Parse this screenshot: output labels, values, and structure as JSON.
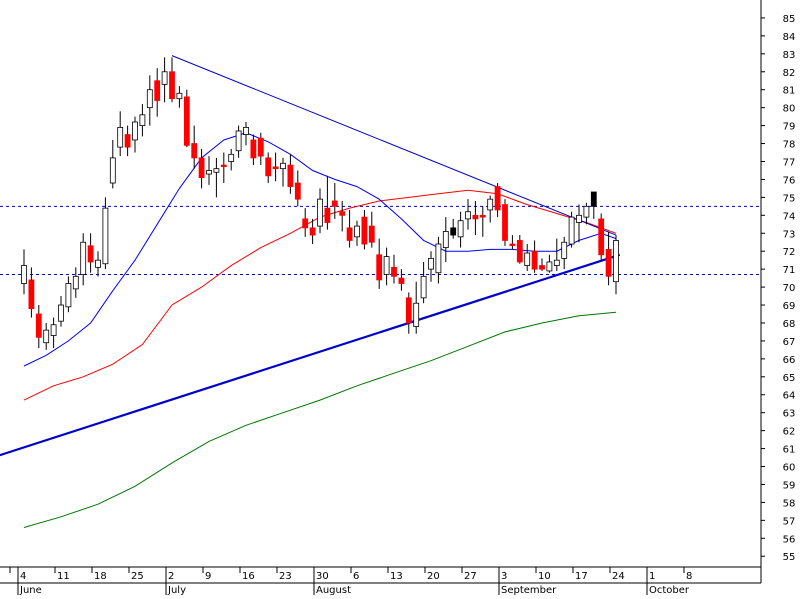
{
  "chart_data": {
    "type": "candlestick",
    "title": "",
    "xlabel": "",
    "ylabel": "",
    "ylim": [
      54.4,
      86.0
    ],
    "y_ticks": [
      55,
      56,
      57,
      58,
      59,
      60,
      61,
      62,
      63,
      64,
      65,
      66,
      67,
      68,
      69,
      70,
      71,
      72,
      73,
      74,
      75,
      76,
      77,
      78,
      79,
      80,
      81,
      82,
      83,
      84,
      85
    ],
    "x_day_ticks": [
      {
        "label": "4",
        "i": 0
      },
      {
        "label": "11",
        "i": 5
      },
      {
        "label": "18",
        "i": 10
      },
      {
        "label": "25",
        "i": 15
      },
      {
        "label": "2",
        "i": 20
      },
      {
        "label": "9",
        "i": 25
      },
      {
        "label": "16",
        "i": 30
      },
      {
        "label": "23",
        "i": 35
      },
      {
        "label": "30",
        "i": 40
      },
      {
        "label": "6",
        "i": 45
      },
      {
        "label": "13",
        "i": 50
      },
      {
        "label": "20",
        "i": 55
      },
      {
        "label": "27",
        "i": 60
      },
      {
        "label": "3",
        "i": 65
      },
      {
        "label": "10",
        "i": 70
      },
      {
        "label": "17",
        "i": 75
      },
      {
        "label": "24",
        "i": 80
      },
      {
        "label": "1",
        "i": 85
      },
      {
        "label": "8",
        "i": 90
      }
    ],
    "x_month_ticks": [
      {
        "label": "June",
        "i": 0
      },
      {
        "label": "July",
        "i": 20
      },
      {
        "label": "August",
        "i": 40
      },
      {
        "label": "September",
        "i": 65
      },
      {
        "label": "October",
        "i": 85
      }
    ],
    "candles": [
      {
        "o": 70.2,
        "h": 72.1,
        "l": 69.6,
        "c": 71.2,
        "dir": "up"
      },
      {
        "o": 70.4,
        "h": 71.1,
        "l": 68.3,
        "c": 68.8,
        "dir": "down"
      },
      {
        "o": 68.5,
        "h": 69.0,
        "l": 66.6,
        "c": 67.2,
        "dir": "down"
      },
      {
        "o": 66.9,
        "h": 68.0,
        "l": 66.5,
        "c": 67.6,
        "dir": "up"
      },
      {
        "o": 67.3,
        "h": 68.3,
        "l": 66.6,
        "c": 67.9,
        "dir": "up"
      },
      {
        "o": 68.1,
        "h": 69.5,
        "l": 67.8,
        "c": 69.0,
        "dir": "up"
      },
      {
        "o": 68.9,
        "h": 70.6,
        "l": 68.6,
        "c": 70.2,
        "dir": "up"
      },
      {
        "o": 69.9,
        "h": 71.1,
        "l": 69.4,
        "c": 70.6,
        "dir": "up"
      },
      {
        "o": 70.7,
        "h": 73.0,
        "l": 70.1,
        "c": 72.5,
        "dir": "up"
      },
      {
        "o": 72.3,
        "h": 73.0,
        "l": 70.8,
        "c": 71.4,
        "dir": "down"
      },
      {
        "o": 71.1,
        "h": 72.0,
        "l": 70.6,
        "c": 71.5,
        "dir": "up"
      },
      {
        "o": 71.3,
        "h": 75.0,
        "l": 71.0,
        "c": 74.4,
        "dir": "up"
      },
      {
        "o": 75.8,
        "h": 78.2,
        "l": 75.5,
        "c": 77.2,
        "dir": "up"
      },
      {
        "o": 77.8,
        "h": 79.8,
        "l": 77.3,
        "c": 78.9,
        "dir": "up"
      },
      {
        "o": 78.5,
        "h": 79.0,
        "l": 77.3,
        "c": 77.8,
        "dir": "down"
      },
      {
        "o": 78.2,
        "h": 79.5,
        "l": 77.5,
        "c": 79.2,
        "dir": "up"
      },
      {
        "o": 79.0,
        "h": 80.2,
        "l": 78.4,
        "c": 79.6,
        "dir": "up"
      },
      {
        "o": 80.0,
        "h": 81.8,
        "l": 79.0,
        "c": 81.0,
        "dir": "up"
      },
      {
        "o": 81.5,
        "h": 82.2,
        "l": 79.5,
        "c": 80.4,
        "dir": "down"
      },
      {
        "o": 81.3,
        "h": 82.8,
        "l": 80.3,
        "c": 82.0,
        "dir": "up"
      },
      {
        "o": 82.0,
        "h": 82.8,
        "l": 80.3,
        "c": 80.5,
        "dir": "down"
      },
      {
        "o": 80.8,
        "h": 81.2,
        "l": 80.0,
        "c": 80.5,
        "dir": "up"
      },
      {
        "o": 80.6,
        "h": 81.0,
        "l": 77.8,
        "c": 77.9,
        "dir": "down"
      },
      {
        "o": 78.0,
        "h": 79.0,
        "l": 76.6,
        "c": 77.2,
        "dir": "down"
      },
      {
        "o": 77.2,
        "h": 77.7,
        "l": 75.5,
        "c": 76.1,
        "dir": "down"
      },
      {
        "o": 76.3,
        "h": 77.3,
        "l": 75.7,
        "c": 76.5,
        "dir": "up"
      },
      {
        "o": 76.4,
        "h": 77.2,
        "l": 75.0,
        "c": 76.6,
        "dir": "up"
      },
      {
        "o": 76.8,
        "h": 77.5,
        "l": 75.8,
        "c": 76.8,
        "dir": "down"
      },
      {
        "o": 77.0,
        "h": 77.7,
        "l": 76.5,
        "c": 77.4,
        "dir": "up"
      },
      {
        "o": 77.6,
        "h": 79.0,
        "l": 77.2,
        "c": 78.7,
        "dir": "up"
      },
      {
        "o": 78.5,
        "h": 79.2,
        "l": 77.9,
        "c": 78.9,
        "dir": "up"
      },
      {
        "o": 78.2,
        "h": 78.5,
        "l": 76.8,
        "c": 77.2,
        "dir": "down"
      },
      {
        "o": 78.3,
        "h": 78.6,
        "l": 76.8,
        "c": 77.3,
        "dir": "down"
      },
      {
        "o": 77.2,
        "h": 77.5,
        "l": 75.8,
        "c": 76.2,
        "dir": "down"
      },
      {
        "o": 76.7,
        "h": 77.5,
        "l": 75.9,
        "c": 76.6,
        "dir": "down"
      },
      {
        "o": 76.6,
        "h": 77.2,
        "l": 75.6,
        "c": 76.9,
        "dir": "up"
      },
      {
        "o": 76.8,
        "h": 77.4,
        "l": 75.2,
        "c": 75.6,
        "dir": "down"
      },
      {
        "o": 75.8,
        "h": 76.5,
        "l": 74.5,
        "c": 74.9,
        "dir": "down"
      },
      {
        "o": 73.8,
        "h": 74.4,
        "l": 72.8,
        "c": 73.3,
        "dir": "down"
      },
      {
        "o": 73.3,
        "h": 73.8,
        "l": 72.4,
        "c": 72.9,
        "dir": "down"
      },
      {
        "o": 73.4,
        "h": 75.5,
        "l": 73.0,
        "c": 74.9,
        "dir": "up"
      },
      {
        "o": 74.4,
        "h": 76.2,
        "l": 73.2,
        "c": 73.6,
        "dir": "down"
      },
      {
        "o": 74.8,
        "h": 75.8,
        "l": 73.8,
        "c": 74.5,
        "dir": "down"
      },
      {
        "o": 74.2,
        "h": 74.8,
        "l": 73.1,
        "c": 74.0,
        "dir": "down"
      },
      {
        "o": 73.3,
        "h": 74.3,
        "l": 72.2,
        "c": 72.6,
        "dir": "down"
      },
      {
        "o": 72.8,
        "h": 73.7,
        "l": 72.3,
        "c": 73.4,
        "dir": "up"
      },
      {
        "o": 73.9,
        "h": 74.3,
        "l": 72.1,
        "c": 72.4,
        "dir": "down"
      },
      {
        "o": 73.4,
        "h": 74.2,
        "l": 72.2,
        "c": 72.5,
        "dir": "down"
      },
      {
        "o": 71.8,
        "h": 72.7,
        "l": 69.9,
        "c": 70.4,
        "dir": "down"
      },
      {
        "o": 70.7,
        "h": 72.2,
        "l": 70.1,
        "c": 71.7,
        "dir": "up"
      },
      {
        "o": 71.1,
        "h": 71.8,
        "l": 70.2,
        "c": 70.6,
        "dir": "down"
      },
      {
        "o": 70.5,
        "h": 71.0,
        "l": 69.8,
        "c": 70.2,
        "dir": "down"
      },
      {
        "o": 69.4,
        "h": 69.7,
        "l": 67.4,
        "c": 68.0,
        "dir": "down"
      },
      {
        "o": 67.8,
        "h": 70.3,
        "l": 67.4,
        "c": 69.1,
        "dir": "up"
      },
      {
        "o": 69.4,
        "h": 71.4,
        "l": 69.1,
        "c": 70.6,
        "dir": "up"
      },
      {
        "o": 71.0,
        "h": 72.0,
        "l": 70.3,
        "c": 71.6,
        "dir": "up"
      },
      {
        "o": 70.8,
        "h": 72.8,
        "l": 70.2,
        "c": 72.4,
        "dir": "up"
      },
      {
        "o": 72.2,
        "h": 73.9,
        "l": 71.4,
        "c": 73.1,
        "dir": "up"
      },
      {
        "o": 73.3,
        "h": 73.8,
        "l": 72.7,
        "c": 72.9,
        "dir": "black"
      },
      {
        "o": 72.8,
        "h": 74.2,
        "l": 72.2,
        "c": 73.7,
        "dir": "up"
      },
      {
        "o": 73.8,
        "h": 74.9,
        "l": 73.2,
        "c": 74.2,
        "dir": "up"
      },
      {
        "o": 74.0,
        "h": 74.8,
        "l": 72.9,
        "c": 73.8,
        "dir": "down"
      },
      {
        "o": 74.0,
        "h": 74.5,
        "l": 72.8,
        "c": 73.9,
        "dir": "down"
      },
      {
        "o": 74.3,
        "h": 75.1,
        "l": 73.6,
        "c": 74.9,
        "dir": "up"
      },
      {
        "o": 75.6,
        "h": 75.8,
        "l": 73.9,
        "c": 74.3,
        "dir": "down"
      },
      {
        "o": 74.6,
        "h": 74.9,
        "l": 72.3,
        "c": 72.6,
        "dir": "down"
      },
      {
        "o": 72.4,
        "h": 72.9,
        "l": 72.1,
        "c": 72.4,
        "dir": "down"
      },
      {
        "o": 72.6,
        "h": 72.9,
        "l": 71.3,
        "c": 71.4,
        "dir": "down"
      },
      {
        "o": 71.2,
        "h": 72.4,
        "l": 70.9,
        "c": 71.9,
        "dir": "up"
      },
      {
        "o": 72.0,
        "h": 72.6,
        "l": 70.8,
        "c": 71.0,
        "dir": "down"
      },
      {
        "o": 71.0,
        "h": 71.6,
        "l": 70.9,
        "c": 71.2,
        "dir": "down"
      },
      {
        "o": 70.9,
        "h": 71.8,
        "l": 70.8,
        "c": 71.4,
        "dir": "up"
      },
      {
        "o": 71.2,
        "h": 72.7,
        "l": 70.9,
        "c": 71.5,
        "dir": "up"
      },
      {
        "o": 71.6,
        "h": 72.8,
        "l": 71.0,
        "c": 72.5,
        "dir": "up"
      },
      {
        "o": 72.4,
        "h": 74.2,
        "l": 72.2,
        "c": 73.9,
        "dir": "up"
      },
      {
        "o": 73.6,
        "h": 74.6,
        "l": 72.5,
        "c": 74.0,
        "dir": "up"
      },
      {
        "o": 73.9,
        "h": 74.7,
        "l": 73.5,
        "c": 74.5,
        "dir": "up"
      },
      {
        "o": 74.5,
        "h": 75.3,
        "l": 73.8,
        "c": 75.3,
        "dir": "black"
      },
      {
        "o": 73.8,
        "h": 74.1,
        "l": 71.5,
        "c": 71.8,
        "dir": "down"
      },
      {
        "o": 72.1,
        "h": 73.1,
        "l": 70.1,
        "c": 70.6,
        "dir": "down"
      },
      {
        "o": 70.3,
        "h": 72.9,
        "l": 69.6,
        "c": 72.6,
        "dir": "up"
      }
    ],
    "ma_short": [
      {
        "i": 0,
        "v": 65.6
      },
      {
        "i": 3,
        "v": 66.2
      },
      {
        "i": 6,
        "v": 67.0
      },
      {
        "i": 9,
        "v": 68.0
      },
      {
        "i": 12,
        "v": 69.8
      },
      {
        "i": 15,
        "v": 71.5
      },
      {
        "i": 18,
        "v": 73.5
      },
      {
        "i": 21,
        "v": 75.5
      },
      {
        "i": 24,
        "v": 77.2
      },
      {
        "i": 27,
        "v": 78.2
      },
      {
        "i": 30,
        "v": 78.6
      },
      {
        "i": 33,
        "v": 78.1
      },
      {
        "i": 36,
        "v": 77.4
      },
      {
        "i": 39,
        "v": 76.5
      },
      {
        "i": 42,
        "v": 76.0
      },
      {
        "i": 45,
        "v": 75.6
      },
      {
        "i": 48,
        "v": 74.9
      },
      {
        "i": 51,
        "v": 73.8
      },
      {
        "i": 54,
        "v": 72.6
      },
      {
        "i": 57,
        "v": 72.0
      },
      {
        "i": 60,
        "v": 72.0
      },
      {
        "i": 63,
        "v": 72.1
      },
      {
        "i": 66,
        "v": 72.1
      },
      {
        "i": 69,
        "v": 72.0
      },
      {
        "i": 72,
        "v": 72.0
      },
      {
        "i": 75,
        "v": 72.6
      },
      {
        "i": 78,
        "v": 73.0
      },
      {
        "i": 80,
        "v": 72.7
      }
    ],
    "ma_mid": [
      {
        "i": 0,
        "v": 63.7
      },
      {
        "i": 4,
        "v": 64.5
      },
      {
        "i": 8,
        "v": 65.0
      },
      {
        "i": 12,
        "v": 65.7
      },
      {
        "i": 16,
        "v": 66.8
      },
      {
        "i": 20,
        "v": 69.0
      },
      {
        "i": 24,
        "v": 70.0
      },
      {
        "i": 28,
        "v": 71.2
      },
      {
        "i": 32,
        "v": 72.2
      },
      {
        "i": 36,
        "v": 73.0
      },
      {
        "i": 40,
        "v": 73.9
      },
      {
        "i": 44,
        "v": 74.4
      },
      {
        "i": 48,
        "v": 74.8
      },
      {
        "i": 52,
        "v": 75.0
      },
      {
        "i": 56,
        "v": 75.2
      },
      {
        "i": 60,
        "v": 75.4
      },
      {
        "i": 64,
        "v": 75.2
      },
      {
        "i": 68,
        "v": 74.6
      },
      {
        "i": 72,
        "v": 74.1
      },
      {
        "i": 76,
        "v": 73.6
      },
      {
        "i": 80,
        "v": 73.0
      }
    ],
    "ma_long": [
      {
        "i": 0,
        "v": 56.6
      },
      {
        "i": 5,
        "v": 57.2
      },
      {
        "i": 10,
        "v": 57.9
      },
      {
        "i": 15,
        "v": 58.9
      },
      {
        "i": 20,
        "v": 60.2
      },
      {
        "i": 25,
        "v": 61.4
      },
      {
        "i": 30,
        "v": 62.3
      },
      {
        "i": 35,
        "v": 63.0
      },
      {
        "i": 40,
        "v": 63.7
      },
      {
        "i": 45,
        "v": 64.5
      },
      {
        "i": 50,
        "v": 65.2
      },
      {
        "i": 55,
        "v": 65.9
      },
      {
        "i": 60,
        "v": 66.7
      },
      {
        "i": 65,
        "v": 67.5
      },
      {
        "i": 70,
        "v": 68.0
      },
      {
        "i": 75,
        "v": 68.4
      },
      {
        "i": 80,
        "v": 68.6
      }
    ],
    "trendlines": [
      {
        "name": "resistance",
        "from": {
          "i": 20,
          "v": 82.9
        },
        "to": {
          "i": 80,
          "v": 72.9
        }
      },
      {
        "name": "support",
        "from": {
          "i": -5,
          "v": 60.4
        },
        "to": {
          "i": 80.5,
          "v": 71.8
        }
      }
    ],
    "hlines": [
      74.5,
      70.7
    ],
    "colors": {
      "up": "#ffffff",
      "down": "#ff0000",
      "black": "#000000",
      "ma_short": "#0000ff",
      "ma_mid": "#ff0000",
      "ma_long": "#007700",
      "trendline": "#0000cc",
      "hline": "#0000cc",
      "grid": "#000000"
    }
  }
}
